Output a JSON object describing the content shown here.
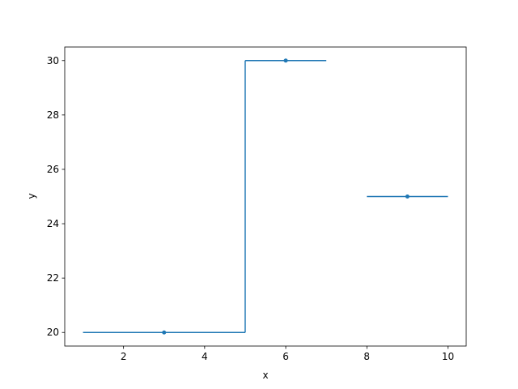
{
  "chart_data": {
    "type": "line",
    "title": "",
    "xlabel": "x",
    "ylabel": "y",
    "xlim": [
      0.55,
      10.45
    ],
    "ylim": [
      19.5,
      30.5
    ],
    "xticks": [
      2,
      4,
      6,
      8,
      10
    ],
    "yticks": [
      20,
      22,
      24,
      26,
      28,
      30
    ],
    "xtick_labels": [
      "2",
      "4",
      "6",
      "8",
      "10"
    ],
    "ytick_labels": [
      "20",
      "22",
      "24",
      "26",
      "28",
      "30"
    ],
    "grid": false,
    "color": "#1f77b4",
    "points": [
      {
        "x": 3,
        "y": 20,
        "x_start": 1,
        "x_end": 5
      },
      {
        "x": 6,
        "y": 30,
        "x_start": 5,
        "x_end": 7
      },
      {
        "x": 9,
        "y": 25,
        "x_start": 8,
        "x_end": 10
      }
    ],
    "step_connections": [
      {
        "x": 5,
        "y_from": 20,
        "y_to": 30
      }
    ]
  }
}
